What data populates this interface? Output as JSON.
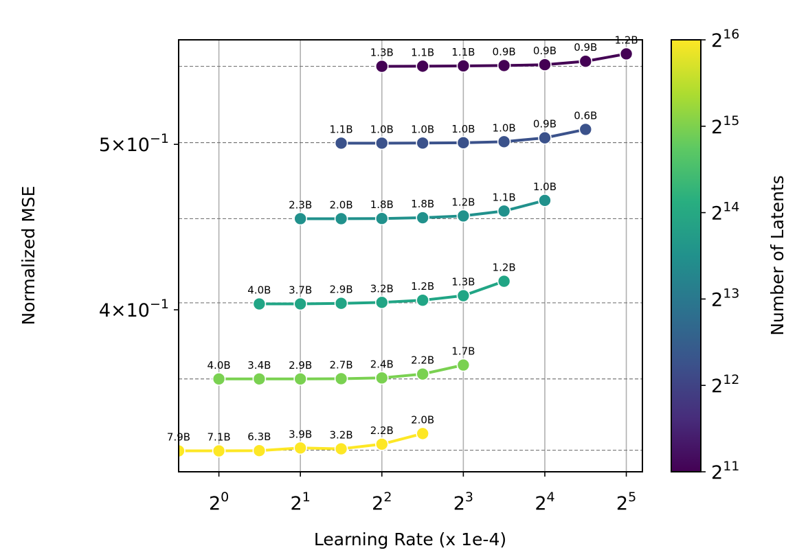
{
  "chart_data": {
    "type": "line",
    "xlabel": "Learning Rate (x 1e-4)",
    "ylabel": "Normalized MSE",
    "colorbar_label": "Number of Latents",
    "x_scale": "log2",
    "y_scale": "log",
    "xlim": [
      0.71,
      36.7
    ],
    "ylim": [
      0.3215,
      0.5757
    ],
    "x_ticks": [
      {
        "value": 1,
        "base": "2",
        "exp": "0"
      },
      {
        "value": 2,
        "base": "2",
        "exp": "1"
      },
      {
        "value": 4,
        "base": "2",
        "exp": "2"
      },
      {
        "value": 8,
        "base": "2",
        "exp": "3"
      },
      {
        "value": 16,
        "base": "2",
        "exp": "4"
      },
      {
        "value": 32,
        "base": "2",
        "exp": "5"
      }
    ],
    "y_ticks": [
      {
        "value": 0.4,
        "mant": "4",
        "base": "10",
        "exp": "−1"
      },
      {
        "value": 0.5,
        "mant": "5",
        "base": "10",
        "exp": "−1"
      }
    ],
    "colorbar_ticks": [
      {
        "log2": 11,
        "base": "2",
        "exp": "11"
      },
      {
        "log2": 12,
        "base": "2",
        "exp": "12"
      },
      {
        "log2": 13,
        "base": "2",
        "exp": "13"
      },
      {
        "log2": 14,
        "base": "2",
        "exp": "14"
      },
      {
        "log2": 15,
        "base": "2",
        "exp": "15"
      },
      {
        "log2": 16,
        "base": "2",
        "exp": "16"
      }
    ],
    "colorbar_range": [
      11,
      16
    ],
    "series": [
      {
        "name": "2^11 latents",
        "log2_latents": 11,
        "color": "#440154",
        "min_line": 0.5555,
        "x": [
          4,
          5.66,
          8,
          11.31,
          16,
          22.63,
          32
        ],
        "y": [
          0.5555,
          0.5556,
          0.5558,
          0.5561,
          0.5567,
          0.5593,
          0.5649
        ],
        "labels": [
          "1.3B",
          "1.1B",
          "1.1B",
          "0.9B",
          "0.9B",
          "0.9B",
          "1.2B"
        ]
      },
      {
        "name": "2^12 latents",
        "log2_latents": 12,
        "color": "#3b528b",
        "min_line": 0.5012,
        "x": [
          2.83,
          4,
          5.66,
          8,
          11.31,
          16,
          22.63
        ],
        "y": [
          0.5008,
          0.5008,
          0.5009,
          0.5011,
          0.5018,
          0.5044,
          0.5102
        ],
        "labels": [
          "1.1B",
          "1.0B",
          "1.0B",
          "1.0B",
          "1.0B",
          "0.9B",
          "0.6B"
        ]
      },
      {
        "name": "2^13 latents",
        "log2_latents": 13,
        "color": "#21918c",
        "min_line": 0.4523,
        "x": [
          2,
          2.83,
          4,
          5.66,
          8,
          11.31,
          16
        ],
        "y": [
          0.4523,
          0.4523,
          0.4524,
          0.4529,
          0.454,
          0.457,
          0.4636
        ],
        "labels": [
          "2.3B",
          "2.0B",
          "1.8B",
          "1.8B",
          "1.2B",
          "1.1B",
          "1.0B"
        ]
      },
      {
        "name": "2^14 latents",
        "log2_latents": 14,
        "color": "#21a585",
        "min_line": 0.4038,
        "x": [
          1.41,
          2,
          2.83,
          4,
          5.66,
          8,
          11.31
        ],
        "y": [
          0.4032,
          0.4032,
          0.4035,
          0.404,
          0.4052,
          0.4077,
          0.4157
        ],
        "labels": [
          "4.0B",
          "3.7B",
          "2.9B",
          "3.2B",
          "1.2B",
          "1.3B",
          "1.2B"
        ]
      },
      {
        "name": "2^15 latents",
        "log2_latents": 15,
        "color": "#7ad151",
        "min_line": 0.3644,
        "x": [
          1,
          1.41,
          2,
          2.83,
          4,
          5.66,
          8
        ],
        "y": [
          0.3644,
          0.3644,
          0.3644,
          0.3645,
          0.3649,
          0.3668,
          0.3713
        ],
        "labels": [
          "4.0B",
          "3.4B",
          "2.9B",
          "2.7B",
          "2.4B",
          "2.2B",
          "1.7B"
        ]
      },
      {
        "name": "2^16 latents",
        "log2_latents": 16,
        "color": "#fde725",
        "min_line": 0.331,
        "x": [
          0.71,
          1,
          1.41,
          2,
          2.83,
          4,
          5.66
        ],
        "y": [
          0.3307,
          0.3307,
          0.3308,
          0.332,
          0.3316,
          0.3337,
          0.3385
        ],
        "labels": [
          "7.9B",
          "7.1B",
          "6.3B",
          "3.9B",
          "3.2B",
          "2.2B",
          "2.0B"
        ]
      }
    ]
  }
}
